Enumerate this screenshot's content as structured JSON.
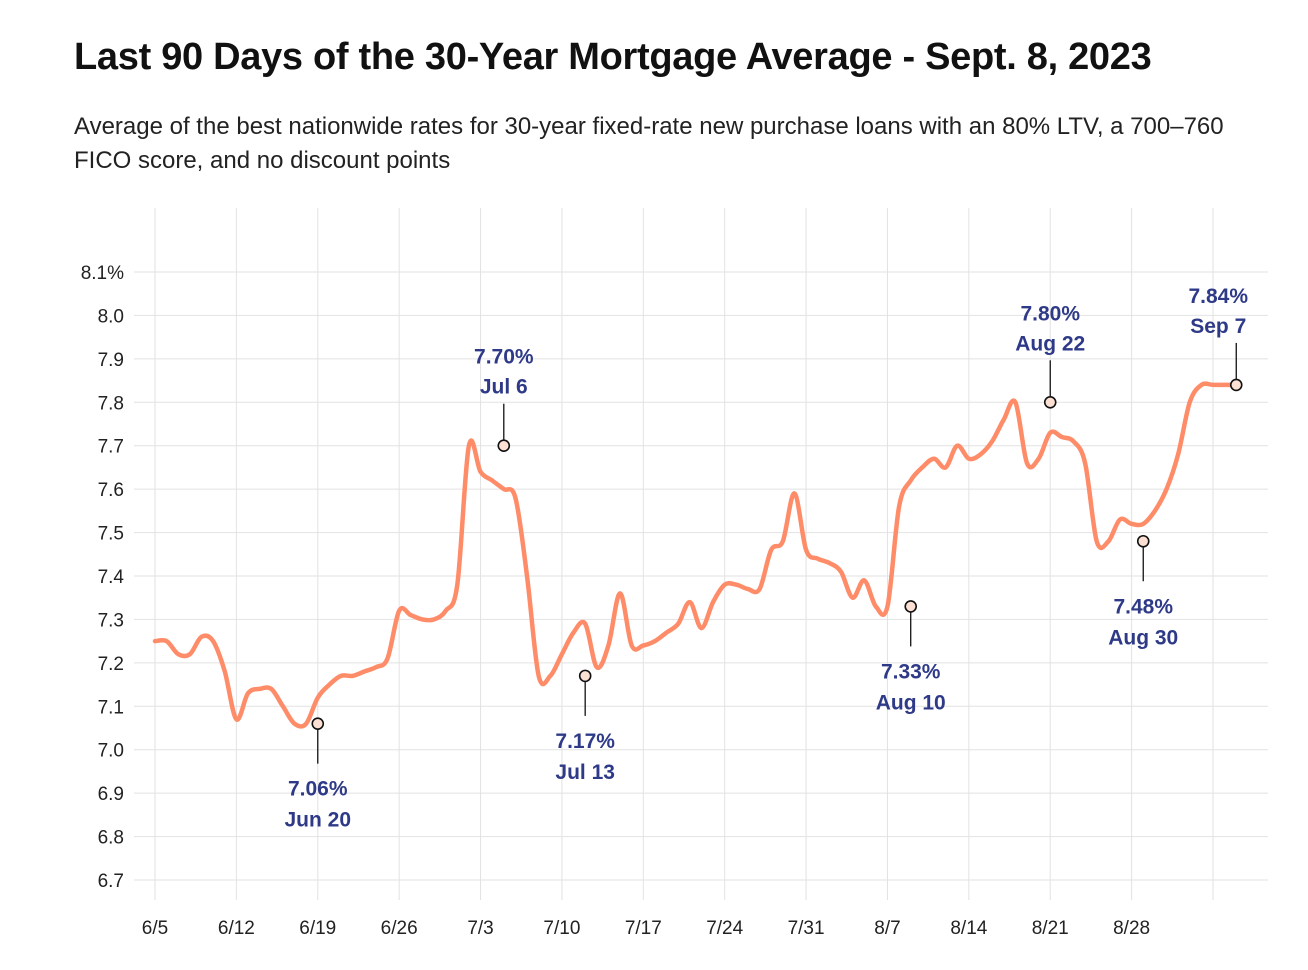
{
  "title": "Last 90 Days of the 30-Year Mortgage Average - Sept. 8, 2023",
  "subtitle": "Average of the best nationwide rates for 30-year fixed-rate new purchase loans with an 80% LTV, a 700–760 FICO score, and no discount points",
  "colors": {
    "line": "#ff8c69",
    "annotation": "#2e3a87",
    "grid": "#e2e2e2"
  },
  "chart_data": {
    "type": "line",
    "title": "Last 90 Days of the 30-Year Mortgage Average - Sept. 8, 2023",
    "xlabel": "",
    "ylabel": "",
    "grid": true,
    "x_start": "6/5",
    "xlim": [
      0,
      95
    ],
    "ylim": [
      6.7,
      8.1
    ],
    "x_ticks": [
      {
        "day": 0,
        "label": "6/5"
      },
      {
        "day": 7,
        "label": "6/12"
      },
      {
        "day": 14,
        "label": "6/19"
      },
      {
        "day": 21,
        "label": "6/26"
      },
      {
        "day": 28,
        "label": "7/3"
      },
      {
        "day": 35,
        "label": "7/10"
      },
      {
        "day": 42,
        "label": "7/17"
      },
      {
        "day": 49,
        "label": "7/24"
      },
      {
        "day": 56,
        "label": "7/31"
      },
      {
        "day": 63,
        "label": "8/7"
      },
      {
        "day": 70,
        "label": "8/14"
      },
      {
        "day": 77,
        "label": "8/21"
      },
      {
        "day": 84,
        "label": "8/28"
      },
      {
        "day": 91,
        "label": ""
      }
    ],
    "y_ticks": [
      {
        "value": 8.1,
        "label": "8.1%"
      },
      {
        "value": 8.0,
        "label": "8.0"
      },
      {
        "value": 7.9,
        "label": "7.9"
      },
      {
        "value": 7.8,
        "label": "7.8"
      },
      {
        "value": 7.7,
        "label": "7.7"
      },
      {
        "value": 7.6,
        "label": "7.6"
      },
      {
        "value": 7.5,
        "label": "7.5"
      },
      {
        "value": 7.4,
        "label": "7.4"
      },
      {
        "value": 7.3,
        "label": "7.3"
      },
      {
        "value": 7.2,
        "label": "7.2"
      },
      {
        "value": 7.1,
        "label": "7.1"
      },
      {
        "value": 7.0,
        "label": "7.0"
      },
      {
        "value": 6.9,
        "label": "6.9"
      },
      {
        "value": 6.8,
        "label": "6.8"
      },
      {
        "value": 6.7,
        "label": "6.7"
      }
    ],
    "series": [
      {
        "name": "30-Year Mortgage Average",
        "x": [
          0,
          1,
          2,
          3,
          4,
          5,
          6,
          7,
          8,
          9,
          10,
          11,
          12,
          13,
          14,
          15,
          16,
          17,
          18,
          19,
          20,
          21,
          22,
          23,
          24,
          25,
          26,
          27,
          28,
          29,
          30,
          31,
          32,
          33,
          34,
          35,
          36,
          37,
          38,
          39,
          40,
          41,
          42,
          43,
          44,
          45,
          46,
          47,
          48,
          49,
          50,
          51,
          52,
          53,
          54,
          55,
          56,
          57,
          58,
          59,
          60,
          61,
          62,
          63,
          64,
          65,
          66,
          67,
          68,
          69,
          70,
          71,
          72,
          73,
          74,
          75,
          76,
          77,
          78,
          79,
          80,
          81,
          82,
          83,
          84,
          85,
          86,
          87,
          88,
          89,
          90,
          91,
          92,
          93
        ],
        "values": [
          7.25,
          7.25,
          7.22,
          7.22,
          7.26,
          7.25,
          7.18,
          7.07,
          7.13,
          7.14,
          7.14,
          7.1,
          7.06,
          7.06,
          7.12,
          7.15,
          7.17,
          7.17,
          7.18,
          7.19,
          7.21,
          7.32,
          7.31,
          7.3,
          7.3,
          7.32,
          7.38,
          7.7,
          7.64,
          7.62,
          7.6,
          7.58,
          7.4,
          7.17,
          7.17,
          7.22,
          7.27,
          7.29,
          7.19,
          7.24,
          7.36,
          7.24,
          7.24,
          7.25,
          7.27,
          7.29,
          7.34,
          7.28,
          7.34,
          7.38,
          7.38,
          7.37,
          7.37,
          7.46,
          7.48,
          7.59,
          7.46,
          7.44,
          7.43,
          7.41,
          7.35,
          7.39,
          7.33,
          7.33,
          7.56,
          7.62,
          7.65,
          7.67,
          7.65,
          7.7,
          7.67,
          7.68,
          7.71,
          7.76,
          7.8,
          7.66,
          7.67,
          7.73,
          7.72,
          7.71,
          7.66,
          7.48,
          7.48,
          7.53,
          7.52,
          7.52,
          7.55,
          7.6,
          7.68,
          7.8,
          7.84,
          7.84,
          7.84,
          7.84
        ]
      }
    ],
    "annotations": [
      {
        "x": 14,
        "y": 7.06,
        "value_label": "7.06%",
        "date_label": "Jun 20",
        "position": "below"
      },
      {
        "x": 30,
        "y": 7.7,
        "value_label": "7.70%",
        "date_label": "Jul 6",
        "position": "above"
      },
      {
        "x": 37,
        "y": 7.17,
        "value_label": "7.17%",
        "date_label": "Jul 13",
        "position": "below"
      },
      {
        "x": 65,
        "y": 7.33,
        "value_label": "7.33%",
        "date_label": "Aug 10",
        "position": "below"
      },
      {
        "x": 77,
        "y": 7.8,
        "value_label": "7.80%",
        "date_label": "Aug 22",
        "position": "above"
      },
      {
        "x": 85,
        "y": 7.48,
        "value_label": "7.48%",
        "date_label": "Aug 30",
        "position": "below"
      },
      {
        "x": 93,
        "y": 7.84,
        "value_label": "7.84%",
        "date_label": "Sep 7",
        "position": "above"
      }
    ]
  }
}
